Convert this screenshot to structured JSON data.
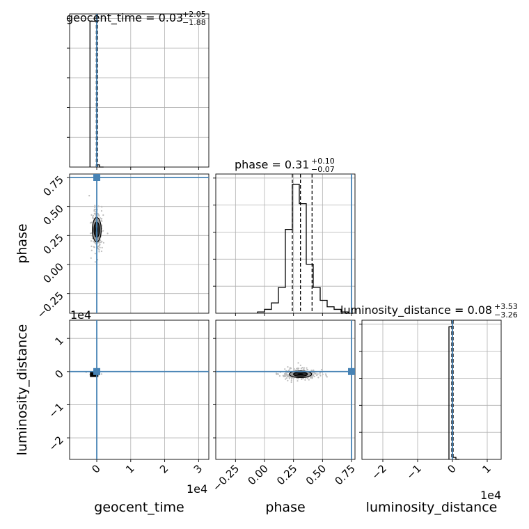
{
  "chart_data": [
    {
      "type": "histogram",
      "panel": "geocent_time-marginal",
      "title": {
        "prefix": "geocent_time = ",
        "value": "0.03",
        "sup": "+2.05",
        "sub": "−1.88"
      },
      "xlim": [
        -0.8,
        3.3
      ],
      "x_scale_label": "1e4",
      "bin_edges": [
        -0.2,
        -0.05,
        0.0,
        0.08,
        0.2
      ],
      "counts": [
        1.0,
        1.0,
        0.015,
        0.0
      ],
      "ylim": [
        0,
        1.05
      ],
      "quantile_lines": [
        -0.013,
        0.003,
        0.02
      ],
      "truth": 0.0
    },
    {
      "type": "histogram",
      "panel": "phase-marginal",
      "title": {
        "prefix": "phase = ",
        "value": "0.31",
        "sup": "+0.10",
        "sub": "−0.07"
      },
      "xlim": [
        -0.42,
        0.78
      ],
      "bin_edges": [
        -0.06,
        0.0,
        0.06,
        0.12,
        0.18,
        0.24,
        0.3,
        0.36,
        0.42,
        0.48,
        0.54,
        0.6,
        0.66,
        0.72
      ],
      "counts": [
        0.01,
        0.03,
        0.08,
        0.2,
        0.65,
        1.0,
        0.85,
        0.38,
        0.2,
        0.1,
        0.05,
        0.03,
        0.01
      ],
      "ylim": [
        0,
        1.08
      ],
      "quantile_lines": [
        0.24,
        0.31,
        0.41
      ],
      "truth": 0.75
    },
    {
      "type": "histogram",
      "panel": "luminosity_distance-marginal",
      "title": {
        "prefix": "luminosity_distance = ",
        "value": "0.08",
        "sup": "+3.53",
        "sub": "−3.26"
      },
      "xlim": [
        -2.6,
        1.4
      ],
      "x_scale_label": "1e4",
      "bin_edges": [
        -0.1,
        0.0,
        0.1,
        0.2
      ],
      "counts": [
        1.0,
        0.015,
        0.0
      ],
      "ylim": [
        0,
        1.05
      ],
      "quantile_lines": [
        -0.02,
        0.0,
        0.02
      ],
      "truth": 0.0
    },
    {
      "type": "scatter",
      "panel": "phase-vs-geocent_time",
      "xlim": [
        -0.8,
        3.3
      ],
      "ylim": [
        -0.42,
        0.78
      ],
      "center": [
        0.0,
        0.3
      ],
      "truth": [
        0.0,
        0.75
      ]
    },
    {
      "type": "scatter",
      "panel": "luminosity_distance-vs-geocent_time",
      "xlim": [
        -0.8,
        3.3
      ],
      "ylim": [
        -2.65,
        1.55
      ],
      "center": [
        -0.05,
        -0.08
      ],
      "truth": [
        0.0,
        0.0
      ]
    },
    {
      "type": "scatter",
      "panel": "luminosity_distance-vs-phase",
      "xlim": [
        -0.42,
        0.78
      ],
      "ylim": [
        -2.65,
        1.55
      ],
      "center": [
        0.31,
        -0.08
      ],
      "truth": [
        0.75,
        0.0
      ]
    }
  ],
  "axes": {
    "xlabels": [
      "geocent_time",
      "phase",
      "luminosity_distance"
    ],
    "ylabels": [
      "phase",
      "luminosity_distance"
    ],
    "scale_labels": [
      "1e4",
      "1e4",
      "1e4"
    ],
    "geocent_ticks": [
      "0",
      "1",
      "2",
      "3"
    ],
    "phase_ticks": [
      "−0.25",
      "0.00",
      "0.25",
      "0.50",
      "0.75"
    ],
    "lumdist_ticks": [
      "−2",
      "−1",
      "0",
      "1"
    ],
    "lumdist_yticks": [
      "1",
      "0",
      "−1",
      "−2"
    ]
  },
  "colors": {
    "truth": "#4682b4",
    "hist": "#000000",
    "grid": "#b0b0b0"
  }
}
